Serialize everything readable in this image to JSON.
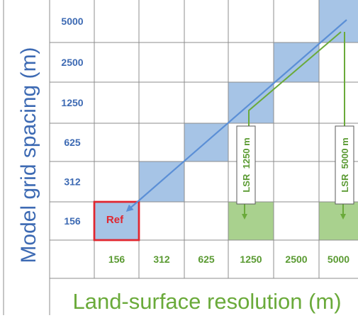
{
  "y_axis": {
    "title": "Model grid spacing (m)",
    "ticks": [
      "5000",
      "2500",
      "1250",
      "625",
      "312",
      "156"
    ]
  },
  "x_axis": {
    "title": "Land-surface resolution (m)",
    "ticks": [
      "156",
      "312",
      "625",
      "1250",
      "2500",
      "5000"
    ]
  },
  "ref_label": "Ref",
  "highlighted_cells": [
    {
      "x": "156",
      "y": "156",
      "kind": "ref"
    },
    {
      "x": "312",
      "y": "312",
      "kind": "diagonal"
    },
    {
      "x": "625",
      "y": "625",
      "kind": "diagonal"
    },
    {
      "x": "1250",
      "y": "1250",
      "kind": "diagonal"
    },
    {
      "x": "2500",
      "y": "2500",
      "kind": "diagonal"
    },
    {
      "x": "5000",
      "y": "5000",
      "kind": "diagonal"
    },
    {
      "x": "1250",
      "y": "156",
      "kind": "lsr"
    },
    {
      "x": "5000",
      "y": "156",
      "kind": "lsr"
    }
  ],
  "lsr_boxes": [
    {
      "label": "LSR  1250 m",
      "from": "1250",
      "to_x": "1250"
    },
    {
      "label": "LSR  5000 m",
      "from": "5000",
      "to_x": "5000"
    }
  ],
  "colors": {
    "grid": "#8c8c8c",
    "axis_blue": "#3d6ab3",
    "tick_green": "#5a9a32",
    "title_green": "#6aaa3a",
    "cell_blue": "#a6c4e6",
    "cell_green": "#a9d18e",
    "ref_red": "#e0262f",
    "arrow_blue": "#5b8fd6",
    "arrow_green": "#6aaa3a"
  }
}
